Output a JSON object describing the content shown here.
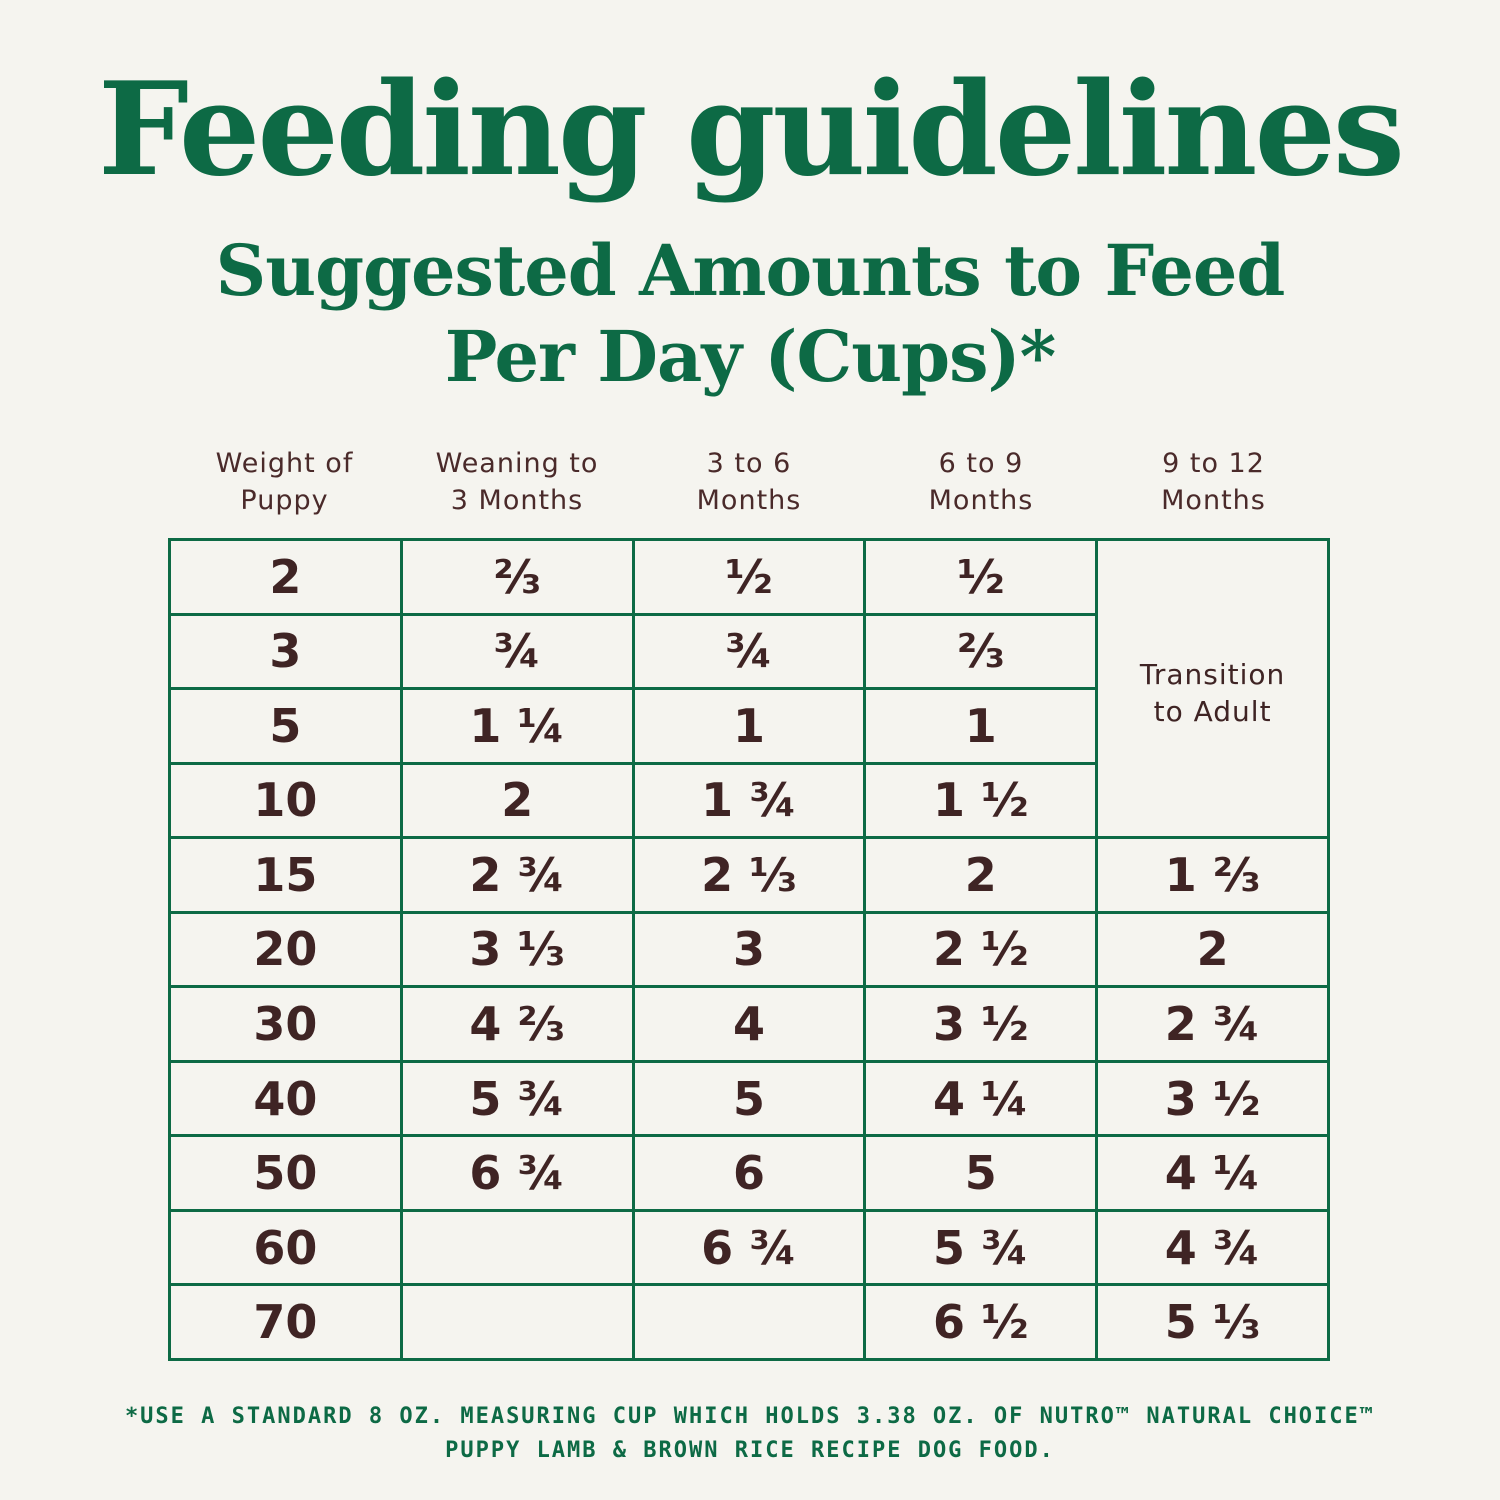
{
  "title": "Feeding guidelines",
  "subtitle": {
    "line1": "Suggested Amounts to Feed",
    "line2": "Per Day (Cups)*"
  },
  "table": {
    "headers": [
      [
        "Weight of",
        "Puppy"
      ],
      [
        "Weaning to",
        "3 Months"
      ],
      [
        "3 to 6",
        "Months"
      ],
      [
        "6 to 9",
        "Months"
      ],
      [
        "9 to 12",
        "Months"
      ]
    ],
    "transition_note": [
      "Transition",
      "to Adult"
    ],
    "rows": [
      [
        "2",
        "⅔",
        "½",
        "½",
        ""
      ],
      [
        "3",
        "¾",
        "¾",
        "⅔",
        ""
      ],
      [
        "5",
        "1 ¼",
        "1",
        "1",
        ""
      ],
      [
        "10",
        "2",
        "1 ¾",
        "1 ½",
        ""
      ],
      [
        "15",
        "2 ¾",
        "2 ⅓",
        "2",
        "1 ⅔"
      ],
      [
        "20",
        "3 ⅓",
        "3",
        "2 ½",
        "2"
      ],
      [
        "30",
        "4 ⅔",
        "4",
        "3 ½",
        "2 ¾"
      ],
      [
        "40",
        "5 ¾",
        "5",
        "4 ¼",
        "3 ½"
      ],
      [
        "50",
        "6 ¾",
        "6",
        "5",
        "4 ¼"
      ],
      [
        "60",
        "",
        "6 ¾",
        "5 ¾",
        "4 ¾"
      ],
      [
        "70",
        "",
        "",
        "6 ½",
        "5 ⅓"
      ]
    ]
  },
  "footnote": {
    "line1": "*USE A STANDARD 8 OZ. MEASURING CUP WHICH HOLDS 3.38 OZ. OF NUTRO™ NATURAL CHOICE™",
    "line2": "PUPPY LAMB & BROWN RICE RECIPE DOG FOOD."
  }
}
